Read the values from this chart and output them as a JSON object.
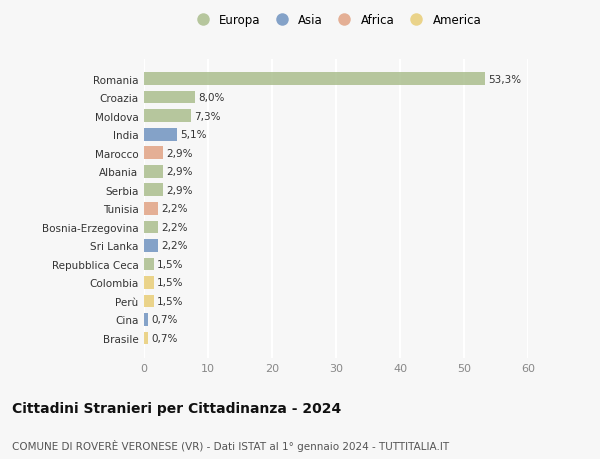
{
  "countries": [
    "Romania",
    "Croazia",
    "Moldova",
    "India",
    "Marocco",
    "Albania",
    "Serbia",
    "Tunisia",
    "Bosnia-Erzegovina",
    "Sri Lanka",
    "Repubblica Ceca",
    "Colombia",
    "Perù",
    "Cina",
    "Brasile"
  ],
  "values": [
    53.3,
    8.0,
    7.3,
    5.1,
    2.9,
    2.9,
    2.9,
    2.2,
    2.2,
    2.2,
    1.5,
    1.5,
    1.5,
    0.7,
    0.7
  ],
  "labels": [
    "53,3%",
    "8,0%",
    "7,3%",
    "5,1%",
    "2,9%",
    "2,9%",
    "2,9%",
    "2,2%",
    "2,2%",
    "2,2%",
    "1,5%",
    "1,5%",
    "1,5%",
    "0,7%",
    "0,7%"
  ],
  "continents": [
    "Europa",
    "Europa",
    "Europa",
    "Asia",
    "Africa",
    "Europa",
    "Europa",
    "Africa",
    "Europa",
    "Asia",
    "Europa",
    "America",
    "America",
    "Asia",
    "America"
  ],
  "continent_colors": {
    "Europa": "#a8bc8a",
    "Asia": "#6b8fbe",
    "Africa": "#e0a080",
    "America": "#e8cc72"
  },
  "legend_order": [
    "Europa",
    "Asia",
    "Africa",
    "America"
  ],
  "xlim": [
    0,
    60
  ],
  "xticks": [
    0,
    10,
    20,
    30,
    40,
    50,
    60
  ],
  "title": "Cittadini Stranieri per Cittadinanza - 2024",
  "subtitle": "COMUNE DI ROVERÈ VERONESE (VR) - Dati ISTAT al 1° gennaio 2024 - TUTTITALIA.IT",
  "bg_color": "#f7f7f7",
  "bar_height": 0.68,
  "label_fontsize": 7.5,
  "ytick_fontsize": 7.5,
  "xtick_fontsize": 8,
  "title_fontsize": 10,
  "subtitle_fontsize": 7.5
}
